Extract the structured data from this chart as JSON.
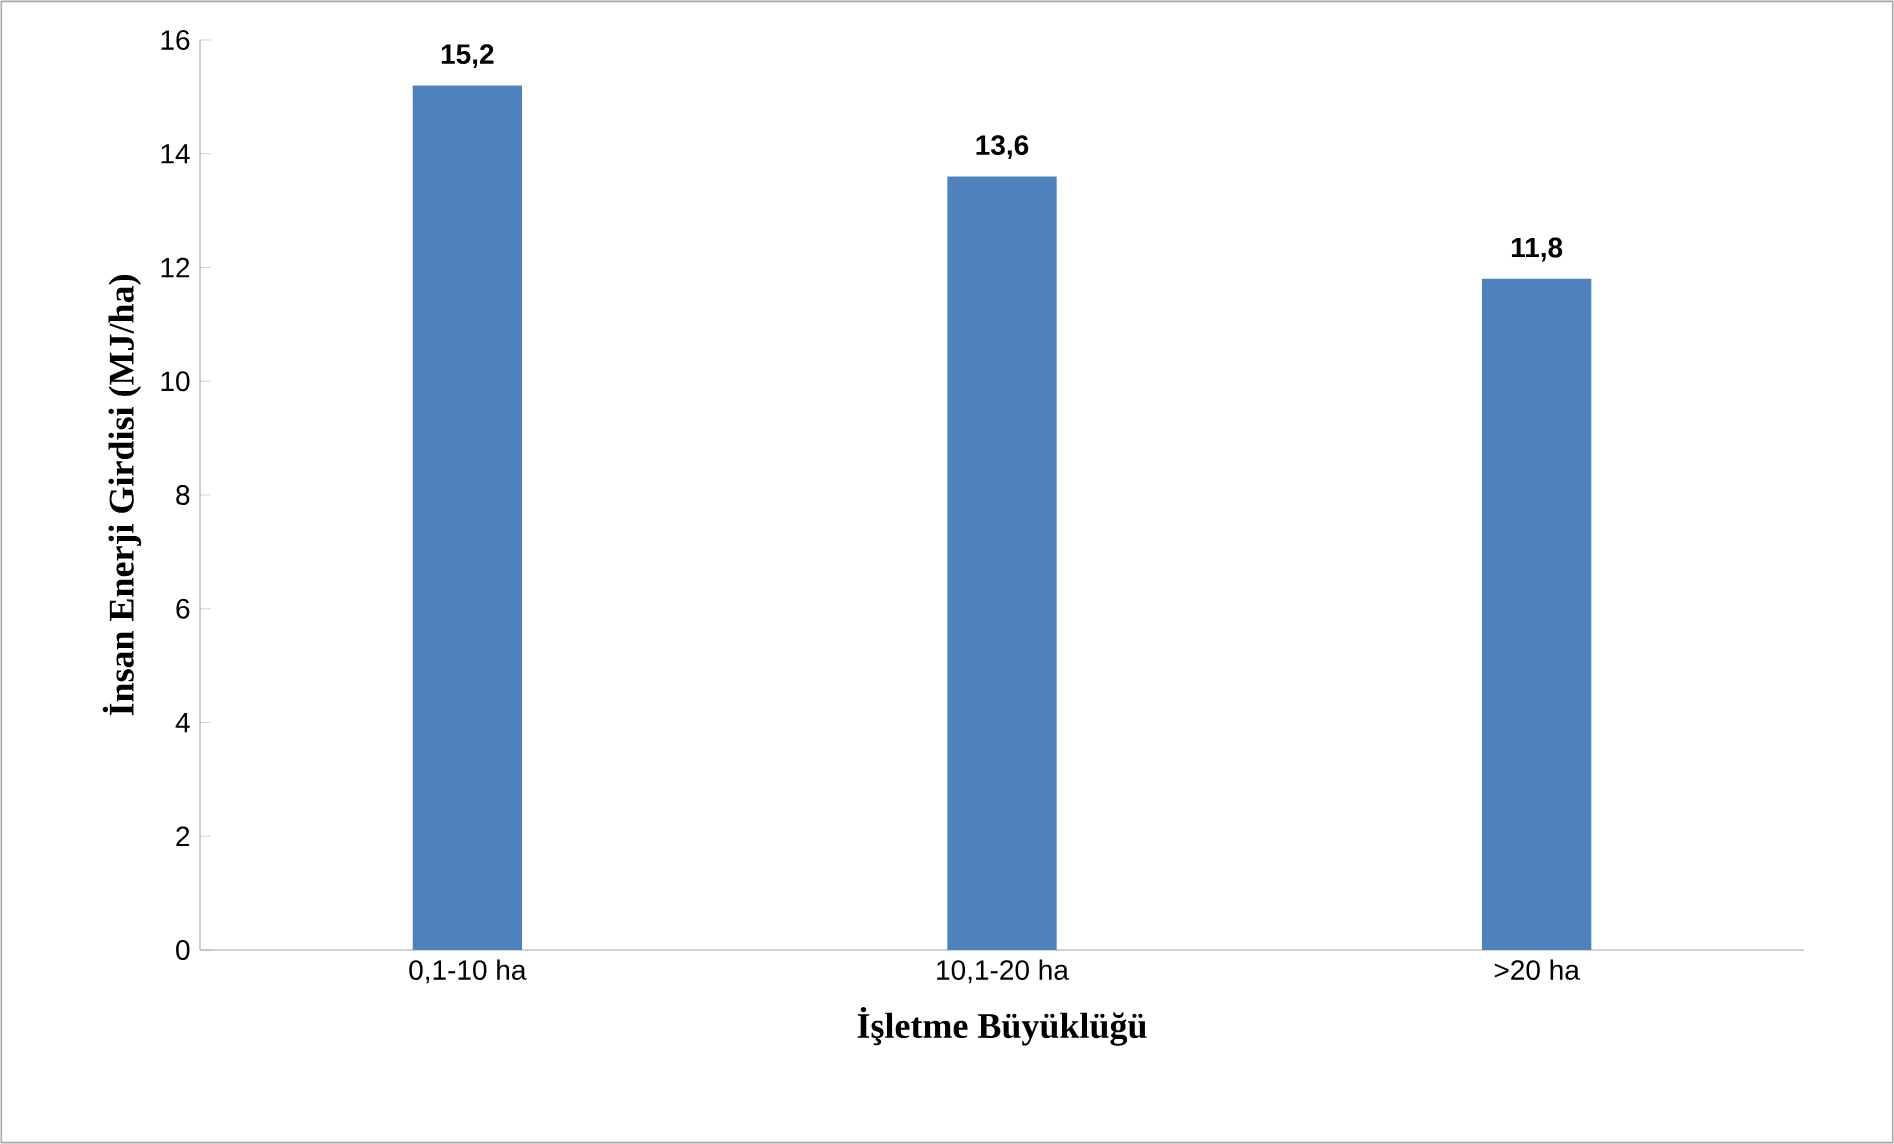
{
  "chart_data": {
    "type": "bar",
    "xlabel": "İşletme Büyüklüğü",
    "ylabel": "İnsan Enerji Girdisi (MJ/ha)",
    "categories": [
      "0,1-10 ha",
      "10,1-20 ha",
      ">20 ha"
    ],
    "values": [
      15.2,
      13.6,
      11.8
    ],
    "value_labels": [
      "15,2",
      "13,6",
      "11,8"
    ],
    "color": "#4f81bd",
    "ylim": [
      0,
      16
    ],
    "yticks": [
      0,
      2,
      4,
      6,
      8,
      10,
      12,
      14,
      16
    ]
  }
}
